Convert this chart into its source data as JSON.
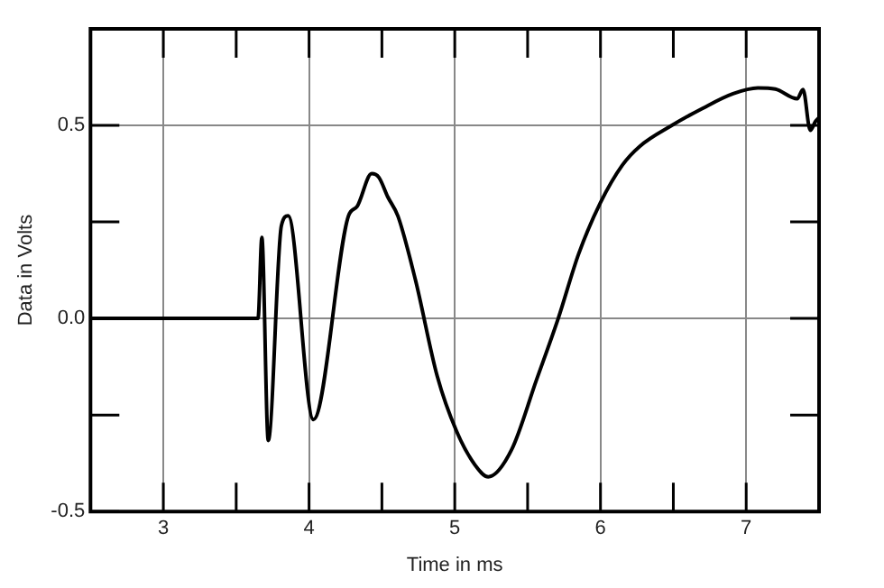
{
  "chart_data": {
    "type": "line",
    "xlabel": "Time in ms",
    "ylabel": "Data in Volts",
    "xlim": [
      2.5,
      7.5
    ],
    "ylim": [
      -0.5,
      0.75
    ],
    "xticks": [
      3,
      {
        "value": 3.5,
        "label": null
      },
      4,
      {
        "value": 4.5,
        "label": null
      },
      5,
      {
        "value": 5.5,
        "label": null
      },
      6,
      {
        "value": 6.5,
        "label": null
      },
      7
    ],
    "yticks": [
      -0.5,
      {
        "value": -0.25,
        "label": null
      },
      {
        "value": 0,
        "label": "0.0"
      },
      {
        "value": 0.25,
        "label": null
      },
      0.5
    ],
    "grid": true,
    "legend": false,
    "marker": "none",
    "line_style": "solid",
    "series": [
      {
        "color": "#000000",
        "x": [
          2.5,
          3.0,
          3.5,
          3.65,
          3.676,
          3.72,
          3.81,
          3.857,
          4.03,
          4.27,
          4.33,
          4.43,
          4.48,
          4.54,
          4.61,
          4.73,
          4.88,
          5.01,
          5.14,
          5.23,
          5.39,
          5.56,
          5.71,
          5.85,
          6.0,
          6.15,
          6.27,
          6.49,
          6.7,
          6.91,
          7.08,
          7.2,
          7.35,
          7.39,
          7.44,
          7.475,
          7.5
        ],
        "values": [
          0,
          0,
          0,
          0,
          0.21,
          -0.316,
          0.24,
          0.266,
          -0.262,
          0.265,
          0.29,
          0.375,
          0.365,
          0.315,
          0.265,
          0.1,
          -0.15,
          -0.29,
          -0.38,
          -0.41,
          -0.34,
          -0.16,
          0,
          0.167,
          0.3,
          0.397,
          0.446,
          0.5,
          0.544,
          0.582,
          0.597,
          0.594,
          0.569,
          0.593,
          0.487,
          0.51,
          0.52
        ]
      }
    ]
  }
}
